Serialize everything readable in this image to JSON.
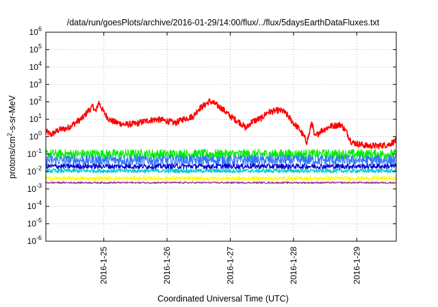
{
  "chart_data": {
    "type": "line",
    "title": "/data/run/goesPlots/archive/2016-01-29/14:00/flux/../flux/5daysEarthDataFluxes.txt",
    "xlabel": "Coordinated Universal Time (UTC)",
    "ylabel": {
      "prefix": "protons/cm",
      "superscript": "2",
      "suffix": "-s-sr-MeV"
    },
    "yscale": "log",
    "ylim": [
      1e-06,
      1000000.0
    ],
    "yticks": [
      {
        "base": "10",
        "exp": "-6",
        "value": 1e-06
      },
      {
        "base": "10",
        "exp": "-5",
        "value": 1e-05
      },
      {
        "base": "10",
        "exp": "-4",
        "value": 0.0001
      },
      {
        "base": "10",
        "exp": "-3",
        "value": 0.001
      },
      {
        "base": "10",
        "exp": "-2",
        "value": 0.01
      },
      {
        "base": "10",
        "exp": "-1",
        "value": 0.1
      },
      {
        "base": "10",
        "exp": "0",
        "value": 1
      },
      {
        "base": "10",
        "exp": "1",
        "value": 10
      },
      {
        "base": "10",
        "exp": "2",
        "value": 100
      },
      {
        "base": "10",
        "exp": "3",
        "value": 1000
      },
      {
        "base": "10",
        "exp": "4",
        "value": 10000
      },
      {
        "base": "10",
        "exp": "5",
        "value": 100000
      },
      {
        "base": "10",
        "exp": "6",
        "value": 1000000
      }
    ],
    "xlim": [
      "2016-01-24 02:00",
      "2016-01-29 15:00"
    ],
    "xticks": [
      {
        "label": "2016-1-25",
        "value": "2016-01-25 00:00"
      },
      {
        "label": "2016-1-26",
        "value": "2016-01-26 00:00"
      },
      {
        "label": "2016-1-27",
        "value": "2016-01-27 00:00"
      },
      {
        "label": "2016-1-28",
        "value": "2016-01-28 00:00"
      },
      {
        "label": "2016-1-29",
        "value": "2016-01-29 00:00"
      }
    ],
    "grid": true,
    "series": [
      {
        "color": "#ff0000",
        "jitter": 0.18,
        "points": [
          [
            "2016-01-24 02:00",
            2
          ],
          [
            "2016-01-24 04:00",
            1.3
          ],
          [
            "2016-01-24 07:00",
            2.5
          ],
          [
            "2016-01-24 10:00",
            3
          ],
          [
            "2016-01-24 13:00",
            6
          ],
          [
            "2016-01-24 16:00",
            12
          ],
          [
            "2016-01-24 18:00",
            30
          ],
          [
            "2016-01-24 20:00",
            55
          ],
          [
            "2016-01-24 21:00",
            25
          ],
          [
            "2016-01-24 22:00",
            100
          ],
          [
            "2016-01-25 00:00",
            25
          ],
          [
            "2016-01-25 02:00",
            10
          ],
          [
            "2016-01-25 04:00",
            7
          ],
          [
            "2016-01-25 08:00",
            5
          ],
          [
            "2016-01-25 12:00",
            5.5
          ],
          [
            "2016-01-25 16:00",
            8
          ],
          [
            "2016-01-25 20:00",
            10
          ],
          [
            "2016-01-26 00:00",
            8
          ],
          [
            "2016-01-26 03:00",
            6
          ],
          [
            "2016-01-26 06:00",
            10
          ],
          [
            "2016-01-26 10:00",
            15
          ],
          [
            "2016-01-26 12:00",
            40
          ],
          [
            "2016-01-26 14:00",
            60
          ],
          [
            "2016-01-26 16:00",
            110
          ],
          [
            "2016-01-26 18:00",
            80
          ],
          [
            "2016-01-26 21:00",
            40
          ],
          [
            "2016-01-27 00:00",
            15
          ],
          [
            "2016-01-27 04:00",
            6
          ],
          [
            "2016-01-27 06:00",
            3
          ],
          [
            "2016-01-27 08:00",
            7
          ],
          [
            "2016-01-27 12:00",
            12
          ],
          [
            "2016-01-27 14:00",
            25
          ],
          [
            "2016-01-27 18:00",
            32
          ],
          [
            "2016-01-27 20:00",
            30
          ],
          [
            "2016-01-27 22:00",
            15
          ],
          [
            "2016-01-28 00:00",
            6
          ],
          [
            "2016-01-28 02:00",
            3
          ],
          [
            "2016-01-28 04:00",
            1
          ],
          [
            "2016-01-28 05:00",
            0.5
          ],
          [
            "2016-01-28 06:00",
            1.5
          ],
          [
            "2016-01-28 07:00",
            8
          ],
          [
            "2016-01-28 08:00",
            0.9
          ],
          [
            "2016-01-28 10:00",
            2
          ],
          [
            "2016-01-28 14:00",
            4
          ],
          [
            "2016-01-28 18:00",
            5
          ],
          [
            "2016-01-28 20:00",
            2
          ],
          [
            "2016-01-28 22:00",
            0.5
          ],
          [
            "2016-01-29 00:00",
            0.4
          ],
          [
            "2016-01-29 04:00",
            0.3
          ],
          [
            "2016-01-29 08:00",
            0.3
          ],
          [
            "2016-01-29 12:00",
            0.35
          ],
          [
            "2016-01-29 14:00",
            0.5
          ],
          [
            "2016-01-29 15:00",
            0.6
          ]
        ]
      },
      {
        "color": "#00ee00",
        "jitter": 0.28,
        "points": [
          [
            "2016-01-24 02:00",
            0.1
          ],
          [
            "2016-01-29 15:00",
            0.1
          ]
        ]
      },
      {
        "color": "#3377ff",
        "jitter": 0.3,
        "points": [
          [
            "2016-01-24 02:00",
            0.045
          ],
          [
            "2016-01-29 15:00",
            0.045
          ]
        ]
      },
      {
        "color": "#00cccc",
        "jitter": 0.12,
        "points": [
          [
            "2016-01-24 02:00",
            0.011
          ],
          [
            "2016-01-29 15:00",
            0.011
          ]
        ]
      },
      {
        "color": "#0000cc",
        "jitter": 0.15,
        "points": [
          [
            "2016-01-24 02:00",
            0.02
          ],
          [
            "2016-01-29 15:00",
            0.02
          ]
        ]
      },
      {
        "color": "#ffff00",
        "jitter": 0.12,
        "points": [
          [
            "2016-01-24 02:00",
            0.004
          ],
          [
            "2016-01-29 15:00",
            0.004
          ]
        ]
      },
      {
        "color": "#993399",
        "jitter": 0.05,
        "points": [
          [
            "2016-01-24 02:00",
            0.0023
          ],
          [
            "2016-01-29 15:00",
            0.0023
          ]
        ]
      }
    ]
  }
}
